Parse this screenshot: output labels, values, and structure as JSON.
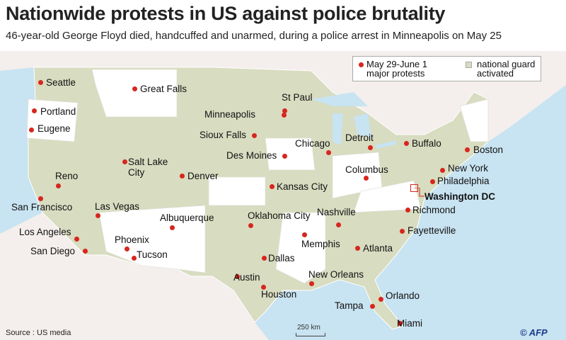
{
  "header": {
    "title": "Nationwide protests in US against police brutality",
    "subtitle": "46-year-old George Floyd died, handcuffed and unarmed, during a police arrest in Minneapolis on May 25"
  },
  "legend": {
    "protests": "May 29-June 1\nmajor protests",
    "guard": "national guard\nactivated"
  },
  "colors": {
    "protest_dot": "#d7261e",
    "national_guard": "#d8dcc0",
    "sea": "#c8e3f1",
    "other_land": "#f4efec"
  },
  "cities": [
    "Seattle",
    "Great Falls",
    "Portland",
    "Eugene",
    "St Paul",
    "Minneapolis",
    "Sioux Falls",
    "Chicago",
    "Detroit",
    "Buffalo",
    "Boston",
    "Des Moines",
    "Salt Lake\nCity",
    "Denver",
    "Reno",
    "Columbus",
    "New York",
    "Philadelphia",
    "Kansas City",
    "San Francisco",
    "Las Vegas",
    "Albuquerque",
    "Oklahoma City",
    "Nashville",
    "Richmond",
    "Los Angeles",
    "San Diego",
    "Phoenix",
    "Tucson",
    "Memphis",
    "Fayetteville",
    "Atlanta",
    "Dallas",
    "Austin",
    "Houston",
    "New Orleans",
    "Orlando",
    "Tampa",
    "Miami"
  ],
  "capital": "Washington DC",
  "footer": {
    "source": "Source : US media",
    "scale": "250 km",
    "credit": "© AFP"
  }
}
